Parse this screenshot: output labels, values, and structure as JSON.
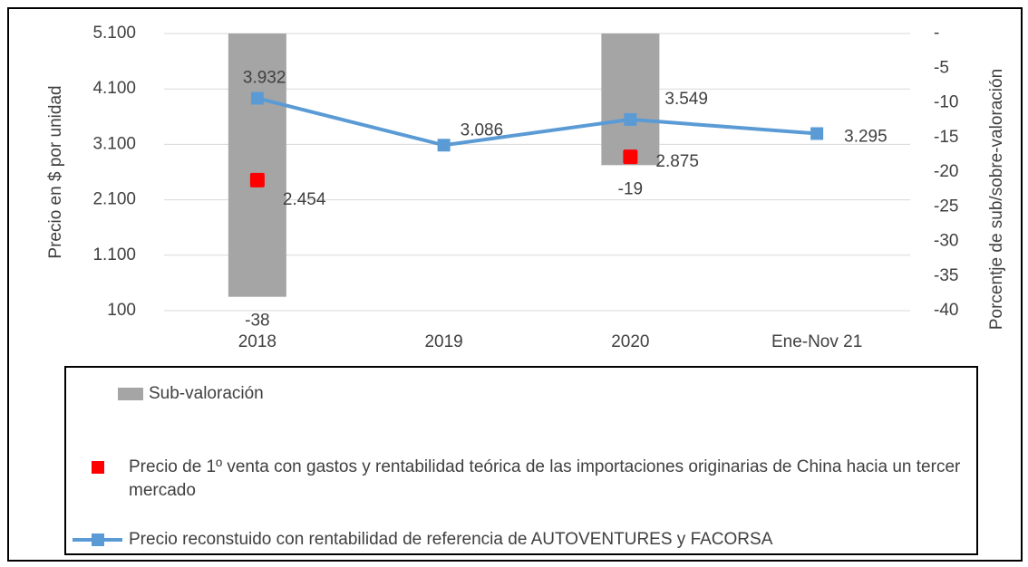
{
  "chart_data": {
    "type": "combo",
    "categories": [
      "2018",
      "2019",
      "2020",
      "Ene-Nov 21"
    ],
    "ylabel": "Precio en $ por unidad",
    "y2label": "Porcentje de sub/sobre-valoración",
    "ylim": [
      100,
      5100
    ],
    "yticks": [
      {
        "value": 100,
        "label": "100"
      },
      {
        "value": 1100,
        "label": "1.100"
      },
      {
        "value": 2100,
        "label": "2.100"
      },
      {
        "value": 3100,
        "label": "3.100"
      },
      {
        "value": 4100,
        "label": "4.100"
      },
      {
        "value": 5100,
        "label": "5.100"
      }
    ],
    "y2lim": [
      -40,
      0
    ],
    "y2ticks": [
      {
        "value": 0,
        "label": "-"
      },
      -5,
      -10,
      -15,
      -20,
      -25,
      -30,
      -35,
      -40
    ],
    "grid": true,
    "legend": "bottom",
    "series": [
      {
        "name": "Sub-valoración",
        "type": "bar",
        "axis": "y2",
        "color": "#a5a5a5",
        "values": [
          -38,
          null,
          -19,
          null
        ]
      },
      {
        "name": "Precio de 1º venta con gastos y rentabilidad teórica de las importaciones originarias de China hacia un tercer mercado",
        "type": "scatter",
        "color": "#ff0000",
        "values": [
          2454,
          null,
          2875,
          null
        ],
        "value_labels": [
          "2.454",
          null,
          "2.875",
          null
        ]
      },
      {
        "name": "Precio reconstuido con rentabilidad de referencia de AUTOVENTURES y FACORSA",
        "type": "line",
        "color": "#5b9bd5",
        "values": [
          3932,
          3086,
          3549,
          3295
        ],
        "value_labels": [
          "3.932",
          "3.086",
          "3.549",
          "3.295"
        ]
      }
    ]
  }
}
